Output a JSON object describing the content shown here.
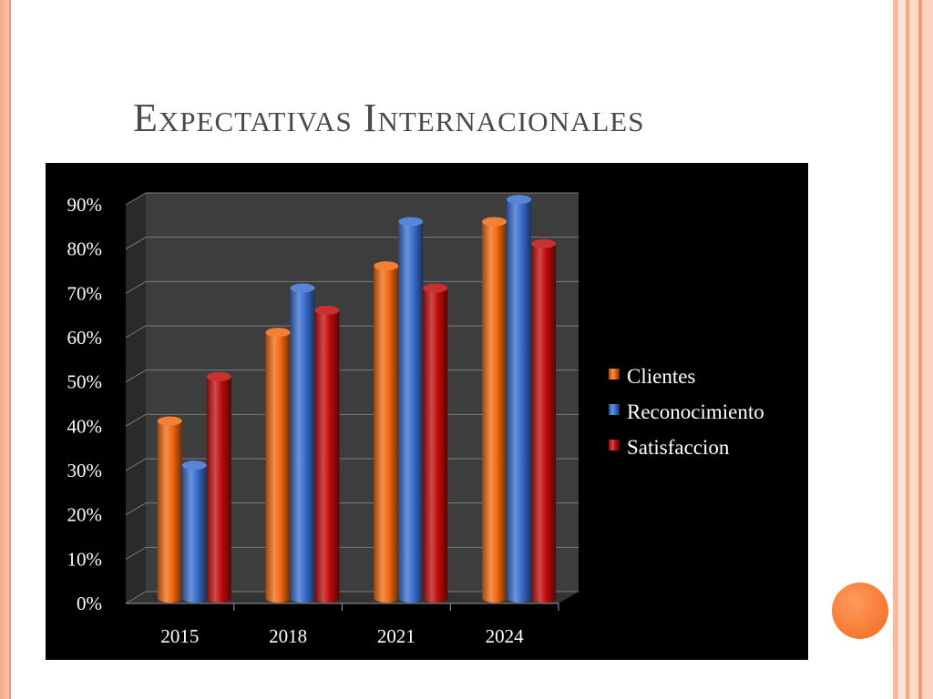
{
  "slide": {
    "title": "Expectativas Internacionales"
  },
  "colors": {
    "slide_bg": "#ffffff",
    "chart_bg": "#000000",
    "plot_wall": "#3a3a3a",
    "accent_circle": "#f5782f"
  },
  "chart_data": {
    "type": "bar",
    "style": "3d-clustered-cylinder",
    "categories": [
      "2015",
      "2018",
      "2021",
      "2024"
    ],
    "series": [
      {
        "name": "Clientes",
        "values": [
          40,
          60,
          75,
          85
        ],
        "color": "#f26a10"
      },
      {
        "name": "Reconocimiento",
        "values": [
          30,
          70,
          85,
          90
        ],
        "color": "#3b6fd0"
      },
      {
        "name": "Satisfaccion",
        "values": [
          50,
          65,
          70,
          80
        ],
        "color": "#c00d0d"
      }
    ],
    "y_unit": "%",
    "ylim": [
      0,
      90
    ],
    "yticks": [
      "0%",
      "10%",
      "20%",
      "30%",
      "40%",
      "50%",
      "60%",
      "70%",
      "80%",
      "90%"
    ],
    "grid": true,
    "legend_position": "right"
  }
}
